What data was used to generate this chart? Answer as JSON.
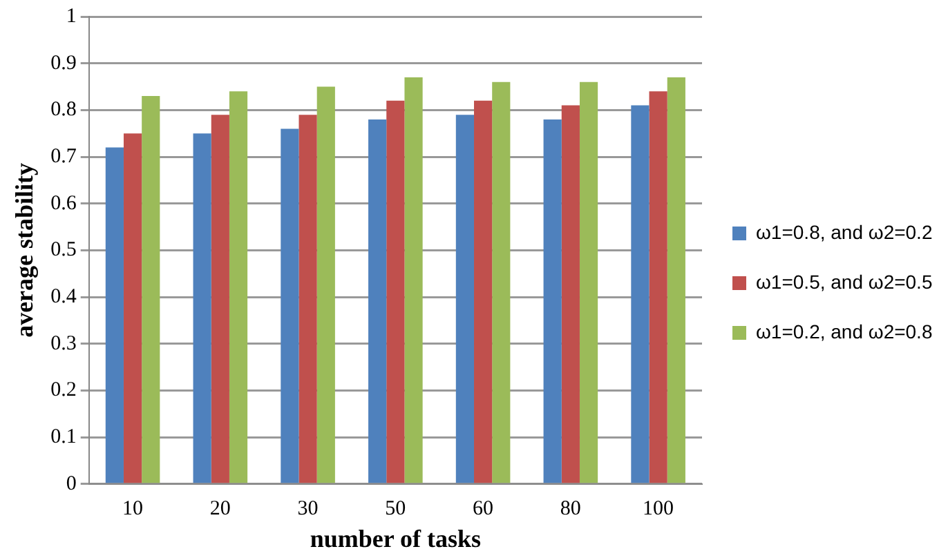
{
  "chart_data": {
    "type": "bar",
    "xlabel": "number of tasks",
    "ylabel": "average stability",
    "categories": [
      "10",
      "20",
      "30",
      "50",
      "60",
      "80",
      "100"
    ],
    "series": [
      {
        "name": "ω1=0.8, and ω2=0.2",
        "color": "#4f81bd",
        "values": [
          0.72,
          0.75,
          0.76,
          0.78,
          0.79,
          0.78,
          0.81
        ]
      },
      {
        "name": "ω1=0.5, and ω2=0.5",
        "color": "#c0504d",
        "values": [
          0.75,
          0.79,
          0.79,
          0.82,
          0.82,
          0.81,
          0.84
        ]
      },
      {
        "name": "ω1=0.2, and ω2=0.8",
        "color": "#9bbb59",
        "values": [
          0.83,
          0.84,
          0.85,
          0.87,
          0.86,
          0.86,
          0.87
        ]
      }
    ],
    "ylim": [
      0,
      1
    ],
    "yticks": [
      0,
      0.1,
      0.2,
      0.3,
      0.4,
      0.5,
      0.6,
      0.7,
      0.8,
      0.9,
      1
    ],
    "grid": "y",
    "legend": "right"
  }
}
